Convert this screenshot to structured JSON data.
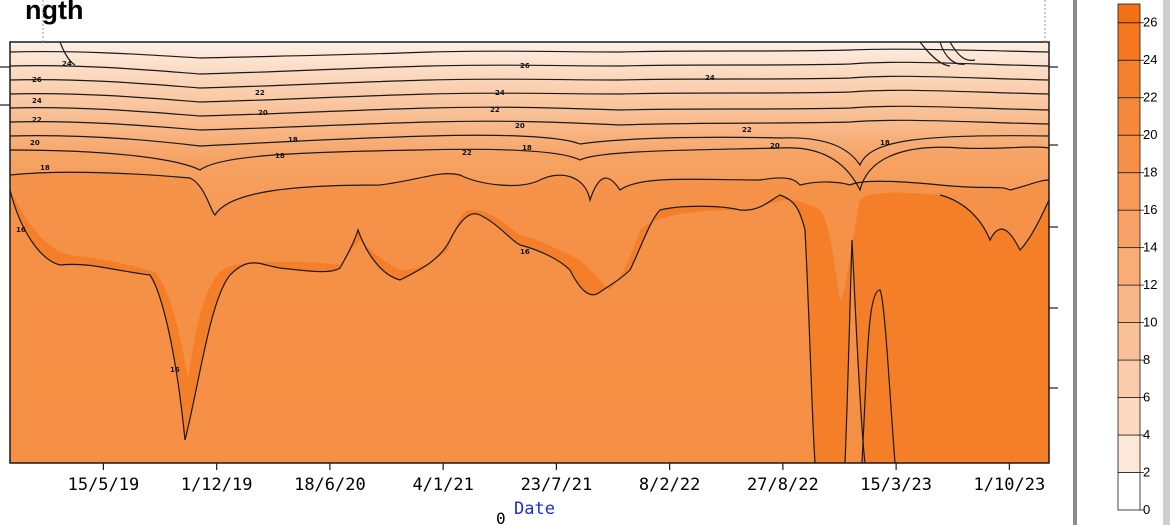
{
  "chart_title": "ngth",
  "x_axis": {
    "xlabel": "Date",
    "ticks": [
      "15/5/19",
      "1/12/19",
      "18/6/20",
      "4/1/21",
      "23/7/21",
      "8/2/22",
      "27/8/22",
      "15/3/23",
      "1/10/23"
    ],
    "xlim": [
      "2018-12-01",
      "2023-12-10"
    ]
  },
  "corner_label": "0",
  "colors": {
    "light": "#fdf0e6",
    "dark": "#f47a1f",
    "contour_line": "#1a1a1a",
    "axis_label": "#1a2bd6"
  },
  "chart_data": {
    "type": "heatmap",
    "x_type": "date",
    "value_range": [
      0,
      27
    ],
    "contour_interval": 2,
    "colorbar": {
      "levels": [
        0,
        2,
        4,
        6,
        8,
        10,
        12,
        14,
        16,
        18,
        20,
        22,
        24,
        26
      ],
      "labels": [
        "0",
        "2",
        "4",
        "6",
        "8",
        "10",
        "12",
        "14",
        "16",
        "18",
        "20",
        "22",
        "24",
        "26"
      ]
    },
    "contour_labels": [
      "16",
      "18",
      "20",
      "22",
      "24",
      "26",
      "24",
      "22",
      "18",
      "16",
      "18",
      "20",
      "22",
      "16",
      "18",
      "20",
      "22",
      "24",
      "26",
      "24",
      "22",
      "20",
      "18"
    ]
  }
}
